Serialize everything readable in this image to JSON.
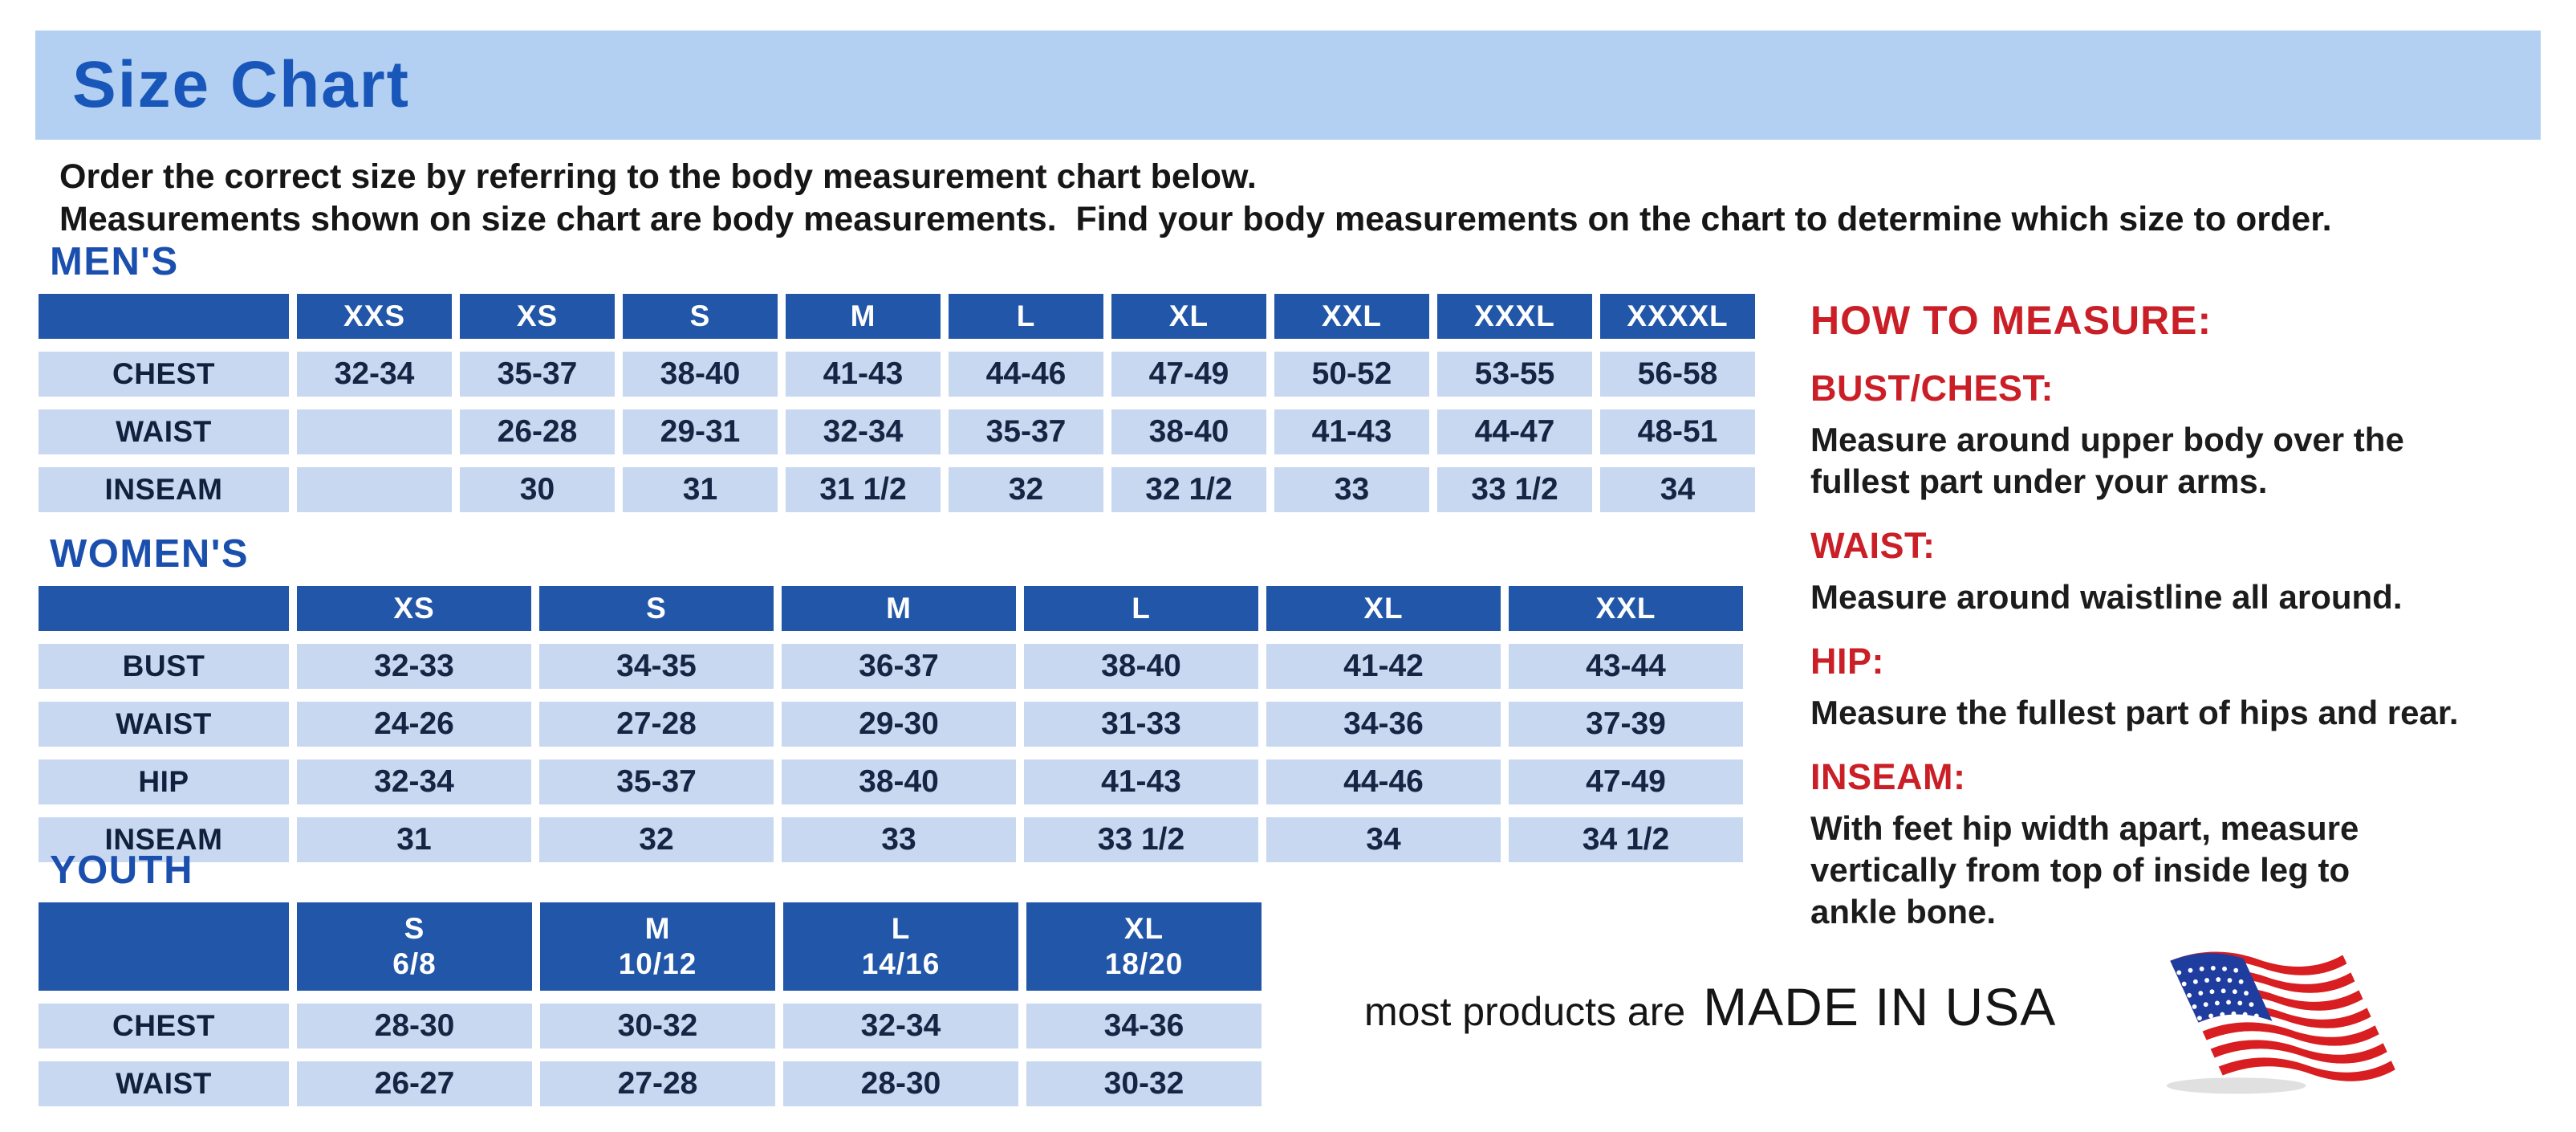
{
  "title": "Size Chart",
  "intro": {
    "line1": "Order the correct size by referring to the body measurement chart below.",
    "line2": "Measurements shown on size chart are body measurements.  Find your body measurements on the chart to determine which size to order."
  },
  "colors": {
    "banner_blue": "#b3cff1",
    "title_blue": "#1856ba",
    "section_heading_blue": "#1b4fae",
    "table_header_blue": "#2156a8",
    "table_cell_blue": "#c7d8f0",
    "heading_red": "#cb1f27",
    "flag_red": "#d81e20",
    "flag_navy": "#1e3d9e"
  },
  "tables": {
    "mens": {
      "heading": "MEN'S",
      "headers": [
        "XXS",
        "XS",
        "S",
        "M",
        "L",
        "XL",
        "XXL",
        "XXXL",
        "XXXXL"
      ],
      "rows": [
        {
          "label": "CHEST",
          "cells": [
            "32-34",
            "35-37",
            "38-40",
            "41-43",
            "44-46",
            "47-49",
            "50-52",
            "53-55",
            "56-58"
          ]
        },
        {
          "label": "WAIST",
          "cells": [
            "",
            "26-28",
            "29-31",
            "32-34",
            "35-37",
            "38-40",
            "41-43",
            "44-47",
            "48-51"
          ]
        },
        {
          "label": "INSEAM",
          "cells": [
            "",
            "30",
            "31",
            "31 1/2",
            "32",
            "32 1/2",
            "33",
            "33 1/2",
            "34"
          ]
        }
      ]
    },
    "womens": {
      "heading": "WOMEN'S",
      "headers": [
        "XS",
        "S",
        "M",
        "L",
        "XL",
        "XXL"
      ],
      "rows": [
        {
          "label": "BUST",
          "cells": [
            "32-33",
            "34-35",
            "36-37",
            "38-40",
            "41-42",
            "43-44"
          ]
        },
        {
          "label": "WAIST",
          "cells": [
            "24-26",
            "27-28",
            "29-30",
            "31-33",
            "34-36",
            "37-39"
          ]
        },
        {
          "label": "HIP",
          "cells": [
            "32-34",
            "35-37",
            "38-40",
            "41-43",
            "44-46",
            "47-49"
          ]
        },
        {
          "label": "INSEAM",
          "cells": [
            "31",
            "32",
            "33",
            "33 1/2",
            "34",
            "34 1/2"
          ]
        }
      ]
    },
    "youth": {
      "heading": "YOUTH",
      "headers": [
        [
          "S",
          "6/8"
        ],
        [
          "M",
          "10/12"
        ],
        [
          "L",
          "14/16"
        ],
        [
          "XL",
          "18/20"
        ]
      ],
      "rows": [
        {
          "label": "CHEST",
          "cells": [
            "28-30",
            "30-32",
            "32-34",
            "34-36"
          ]
        },
        {
          "label": "WAIST",
          "cells": [
            "26-27",
            "27-28",
            "28-30",
            "30-32"
          ]
        }
      ]
    }
  },
  "how_to_measure": {
    "title": "HOW TO MEASURE:",
    "items": [
      {
        "label": "BUST/CHEST:",
        "text": "Measure around upper body over the\nfullest part under your arms."
      },
      {
        "label": "WAIST:",
        "text": "Measure around waistline all around."
      },
      {
        "label": "HIP:",
        "text": "Measure the fullest part of hips and rear."
      },
      {
        "label": "INSEAM:",
        "text": "With feet hip width apart, measure\nvertically from top of inside leg to\nankle bone."
      }
    ]
  },
  "footer": {
    "prefix": "most products are",
    "made_in": "MADE IN USA",
    "flag_icon": "us-flag-icon"
  }
}
